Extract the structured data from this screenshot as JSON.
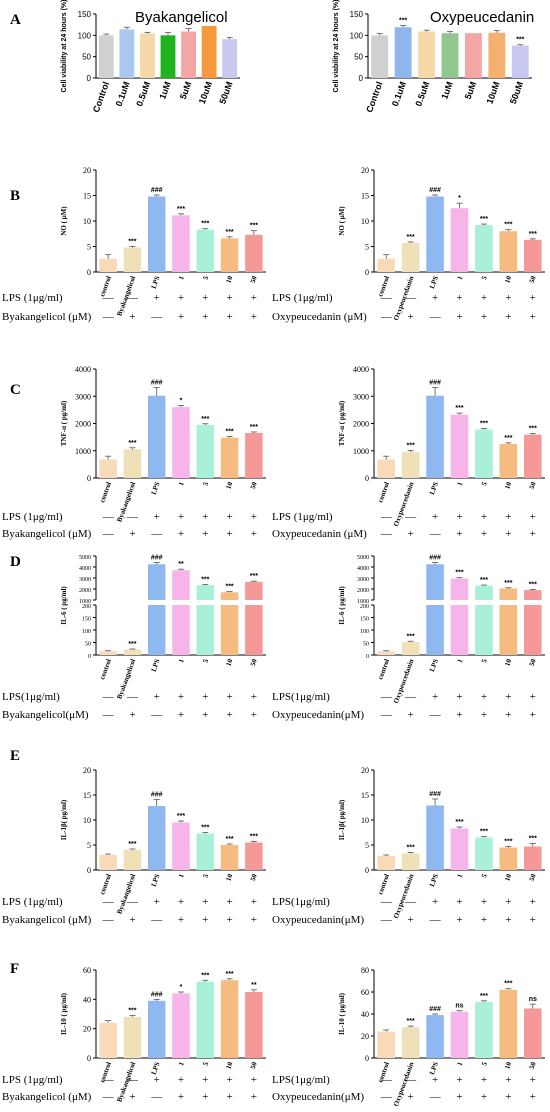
{
  "chart_data": [
    {
      "panel": "A",
      "type": "bar",
      "title": "Byakangelicol",
      "ylabel": "Cell viability at 24 hours (%)",
      "ylim": [
        0,
        150
      ],
      "yticks": [
        0,
        50,
        100,
        150
      ],
      "categories": [
        "Control",
        "0.1uM",
        "0.5uM",
        "1uM",
        "5uM",
        "10uM",
        "50uM"
      ],
      "values": [
        100,
        114,
        104,
        100,
        109,
        122,
        91
      ],
      "errors": [
        3,
        5,
        3,
        7,
        7,
        0,
        4
      ],
      "sig": [
        "",
        "",
        "",
        "",
        "",
        "",
        ""
      ],
      "colors": [
        "#d0d0d0",
        "#a8c8f0",
        "#f5d9a8",
        "#1fb31f",
        "#f4a5a5",
        "#f59a3c",
        "#c8c8f0"
      ]
    },
    {
      "panel": "",
      "type": "bar",
      "title": "Oxypeucedanin",
      "ylabel": "Cell viability at 24 hours (%)",
      "ylim": [
        0,
        150
      ],
      "yticks": [
        0,
        50,
        100,
        150
      ],
      "categories": [
        "Control",
        "0.1uM",
        "0.5uM",
        "1uM",
        "5uM",
        "10uM",
        "50uM"
      ],
      "values": [
        100,
        119,
        109,
        105,
        105,
        106,
        76
      ],
      "errors": [
        4,
        4,
        3,
        4,
        0,
        5,
        2
      ],
      "sig": [
        "",
        "***",
        "",
        "",
        "",
        "",
        "***"
      ],
      "colors": [
        "#d0d0d0",
        "#8fb4ee",
        "#f5d9a8",
        "#8fc78f",
        "#f4a5a5",
        "#f5b070",
        "#c8c8f0"
      ]
    },
    {
      "panel": "B",
      "type": "bar",
      "title": "",
      "ylabel": "NO ( μM)",
      "ylim": [
        0,
        20
      ],
      "yticks": [
        0,
        5,
        10,
        15,
        20
      ],
      "categories": [
        "control",
        "Byakangelicol",
        "LPS",
        "1",
        "5",
        "10",
        "50"
      ],
      "values": [
        2.6,
        4.8,
        14.8,
        11.1,
        8.3,
        6.6,
        7.3
      ],
      "errors": [
        0.8,
        0.2,
        0.3,
        0.3,
        0.2,
        0.3,
        0.8
      ],
      "sig": [
        "",
        "***",
        "###",
        "***",
        "***",
        "***",
        "***"
      ],
      "colors": [
        "#f8d9b8",
        "#f0e0b8",
        "#8fb8f0",
        "#f6b4e8",
        "#a8f0d8",
        "#f6bb80",
        "#f49898"
      ],
      "row_labels": [
        "LPS (1μg/ml)",
        "Byakangelicol (μM)"
      ],
      "rows": [
        [
          "—",
          "—",
          "+",
          "+",
          "+",
          "+",
          "+"
        ],
        [
          "—",
          "+",
          "—",
          "+",
          "+",
          "+",
          "+"
        ]
      ]
    },
    {
      "panel": "",
      "type": "bar",
      "title": "",
      "ylabel": "NO ( μM)",
      "ylim": [
        0,
        20
      ],
      "yticks": [
        0,
        5,
        10,
        15,
        20
      ],
      "categories": [
        "control",
        "Oxypeucedanin",
        "LPS",
        "1",
        "5",
        "10",
        "50"
      ],
      "values": [
        2.6,
        5.7,
        14.8,
        12.5,
        9.2,
        8.0,
        6.3
      ],
      "errors": [
        0.8,
        0.2,
        0.3,
        1.0,
        0.2,
        0.3,
        0.2
      ],
      "sig": [
        "",
        "***",
        "###",
        "*",
        "***",
        "***",
        "***"
      ],
      "colors": [
        "#f8d9b8",
        "#f0e0b8",
        "#8fb8f0",
        "#f6b4e8",
        "#a8f0d8",
        "#f6bb80",
        "#f49898"
      ],
      "row_labels": [
        "LPS (1μg/ml)",
        "Oxypeucedanin (μM)"
      ],
      "rows": [
        [
          "—",
          "—",
          "+",
          "+",
          "+",
          "+",
          "+"
        ],
        [
          "—",
          "+",
          "—",
          "+",
          "+",
          "+",
          "+"
        ]
      ]
    },
    {
      "panel": "C",
      "type": "bar",
      "title": "",
      "ylabel": "TNF-α ( pg/ml)",
      "ylim": [
        0,
        4000
      ],
      "yticks": [
        0,
        1000,
        2000,
        3000,
        4000
      ],
      "categories": [
        "control",
        "Byakangelicol",
        "LPS",
        "1",
        "5",
        "10",
        "50"
      ],
      "values": [
        680,
        1050,
        3020,
        2600,
        1950,
        1480,
        1650
      ],
      "errors": [
        120,
        60,
        300,
        60,
        40,
        40,
        40
      ],
      "sig": [
        "",
        "***",
        "###",
        "*",
        "***",
        "***",
        "***"
      ],
      "colors": [
        "#f8d9b8",
        "#f0e0b8",
        "#8fb8f0",
        "#f6b4e8",
        "#a8f0d8",
        "#f6bb80",
        "#f49898"
      ],
      "row_labels": [
        "LPS (1μg/ml)",
        "Byakangelicol (μM)"
      ],
      "rows": [
        [
          "—",
          "—",
          "+",
          "+",
          "+",
          "+",
          "+"
        ],
        [
          "—",
          "+",
          "—",
          "+",
          "+",
          "+",
          "+"
        ]
      ]
    },
    {
      "panel": "",
      "type": "bar",
      "title": "",
      "ylabel": "TNF-α ( pg/ml)",
      "ylim": [
        0,
        4000
      ],
      "yticks": [
        0,
        1000,
        2000,
        3000,
        4000
      ],
      "categories": [
        "control",
        "Oxypeucedanin",
        "LPS",
        "1",
        "5",
        "10",
        "50"
      ],
      "values": [
        680,
        950,
        3020,
        2320,
        1780,
        1250,
        1590
      ],
      "errors": [
        120,
        60,
        300,
        60,
        40,
        40,
        40
      ],
      "sig": [
        "",
        "***",
        "###",
        "***",
        "***",
        "***",
        "***"
      ],
      "colors": [
        "#f8d9b8",
        "#f0e0b8",
        "#8fb8f0",
        "#f6b4e8",
        "#a8f0d8",
        "#f6bb80",
        "#f49898"
      ],
      "row_labels": [
        "LPS (1μg/ml)",
        "Oxypeucedanin (μM)"
      ],
      "rows": [
        [
          "—",
          "—",
          "+",
          "+",
          "+",
          "+",
          "+"
        ],
        [
          "—",
          "+",
          "—",
          "+",
          "+",
          "+",
          "+"
        ]
      ]
    },
    {
      "panel": "D",
      "type": "bar",
      "title": "",
      "broken_axis": true,
      "ylabel": "IL-6 ( pg/ml)",
      "lower": {
        "ylim": [
          0,
          200
        ],
        "yticks": [
          0,
          50,
          100,
          150,
          200
        ]
      },
      "upper": {
        "ylim": [
          1000,
          5000
        ],
        "yticks": [
          1000,
          2000,
          3000,
          4000,
          5000
        ]
      },
      "categories": [
        "control",
        "Byakangelicol",
        "LPS",
        "1",
        "5",
        "10",
        "50"
      ],
      "values": [
        15,
        22,
        4250,
        3700,
        2350,
        1700,
        2650
      ],
      "errors": [
        2,
        2,
        150,
        100,
        60,
        60,
        60
      ],
      "sig": [
        "",
        "***",
        "###",
        "**",
        "***",
        "***",
        "***"
      ],
      "colors": [
        "#f8d9b8",
        "#f0e0b8",
        "#8fb8f0",
        "#f6b4e8",
        "#a8f0d8",
        "#f6bb80",
        "#f49898"
      ],
      "row_labels": [
        "LPS(1μg/ml)",
        "Byakangelicol(μM)"
      ],
      "rows": [
        [
          "—",
          "—",
          "+",
          "+",
          "+",
          "+",
          "+"
        ],
        [
          "—",
          "+",
          "—",
          "+",
          "+",
          "+",
          "+"
        ]
      ]
    },
    {
      "panel": "",
      "type": "bar",
      "title": "",
      "broken_axis": true,
      "ylabel": "IL-6 ( pg/ml)",
      "lower": {
        "ylim": [
          0,
          200
        ],
        "yticks": [
          0,
          50,
          100,
          150,
          200
        ]
      },
      "upper": {
        "ylim": [
          1000,
          5000
        ],
        "yticks": [
          1000,
          2000,
          3000,
          4000,
          5000
        ]
      },
      "categories": [
        "control",
        "Oxypeucedanin",
        "LPS",
        "1",
        "5",
        "10",
        "50"
      ],
      "values": [
        15,
        52,
        4250,
        2950,
        2300,
        2050,
        1900
      ],
      "errors": [
        2,
        3,
        150,
        80,
        60,
        60,
        60
      ],
      "sig": [
        "",
        "***",
        "###",
        "***",
        "***",
        "***",
        "***"
      ],
      "colors": [
        "#f8d9b8",
        "#f0e0b8",
        "#8fb8f0",
        "#f6b4e8",
        "#a8f0d8",
        "#f6bb80",
        "#f49898"
      ],
      "row_labels": [
        "LPS(1μg/ml)",
        "Oxypeucedanin(μM)"
      ],
      "rows": [
        [
          "—",
          "—",
          "+",
          "+",
          "+",
          "+",
          "+"
        ],
        [
          "—",
          "+",
          "—",
          "+",
          "+",
          "+",
          "+"
        ]
      ]
    },
    {
      "panel": "E",
      "type": "bar",
      "title": "",
      "ylabel": "IL-1β( pg/ml)",
      "ylim": [
        0,
        20
      ],
      "yticks": [
        0,
        5,
        10,
        15,
        20
      ],
      "categories": [
        "control",
        "Byakangelicol",
        "LPS",
        "1",
        "5",
        "10",
        "50"
      ],
      "values": [
        3.0,
        4.0,
        12.8,
        9.5,
        7.3,
        5.0,
        5.5
      ],
      "errors": [
        0.2,
        0.2,
        1.3,
        0.3,
        0.2,
        0.2,
        0.2
      ],
      "sig": [
        "",
        "***",
        "###",
        "***",
        "***",
        "***",
        "***"
      ],
      "colors": [
        "#f8d9b8",
        "#f0e0b8",
        "#8fb8f0",
        "#f6b4e8",
        "#a8f0d8",
        "#f6bb80",
        "#f49898"
      ],
      "row_labels": [
        "LPS (1μg/ml)",
        "Byakangelicol (μM)"
      ],
      "rows": [
        [
          "—",
          "—",
          "+",
          "+",
          "+",
          "+",
          "+"
        ],
        [
          "—",
          "+",
          "—",
          "+",
          "+",
          "+",
          "+"
        ]
      ]
    },
    {
      "panel": "",
      "type": "bar",
      "title": "",
      "ylabel": "IL-1β( pg/ml)",
      "ylim": [
        0,
        20
      ],
      "yticks": [
        0,
        5,
        10,
        15,
        20
      ],
      "categories": [
        "control",
        "Oxypeucedanin",
        "LPS",
        "1",
        "5",
        "10",
        "50"
      ],
      "values": [
        2.8,
        3.3,
        12.9,
        8.3,
        6.5,
        4.5,
        4.7
      ],
      "errors": [
        0.2,
        0.2,
        1.3,
        0.3,
        0.2,
        0.2,
        0.6
      ],
      "sig": [
        "",
        "***",
        "###",
        "***",
        "***",
        "***",
        "***"
      ],
      "colors": [
        "#f8d9b8",
        "#f0e0b8",
        "#8fb8f0",
        "#f6b4e8",
        "#a8f0d8",
        "#f6bb80",
        "#f49898"
      ],
      "row_labels": [
        "LPS(1μg/ml)",
        "Oxypeucedanin(μM)"
      ],
      "rows": [
        [
          "—",
          "—",
          "+",
          "+",
          "+",
          "+",
          "+"
        ],
        [
          "—",
          "+",
          "—",
          "+",
          "+",
          "+",
          "+"
        ]
      ]
    },
    {
      "panel": "F",
      "type": "bar",
      "title": "",
      "ylabel": "IL-10 ( pg/ml)",
      "ylim": [
        0,
        60
      ],
      "yticks": [
        0,
        20,
        40,
        60
      ],
      "categories": [
        "control",
        "Byakangelicol",
        "LPS",
        "1",
        "5",
        "10",
        "50"
      ],
      "values": [
        24,
        28,
        39,
        44,
        52,
        53,
        45
      ],
      "errors": [
        1.5,
        1.0,
        1.0,
        1.0,
        1.0,
        1.0,
        1.5
      ],
      "sig": [
        "",
        "***",
        "###",
        "*",
        "***",
        "***",
        "**"
      ],
      "colors": [
        "#f8d9b8",
        "#f0e0b8",
        "#8fb8f0",
        "#f6b4e8",
        "#a8f0d8",
        "#f6bb80",
        "#f49898"
      ],
      "row_labels": [
        "LPS (1μg/ml)",
        "Byakangelicol (μM)"
      ],
      "rows": [
        [
          "—",
          "—",
          "+",
          "+",
          "+",
          "+",
          "+"
        ],
        [
          "—",
          "+",
          "—",
          "+",
          "+",
          "+",
          "+"
        ]
      ]
    },
    {
      "panel": "",
      "type": "bar",
      "title": "",
      "ylabel": "IL-10 ( pg/ml)",
      "ylim": [
        0,
        80
      ],
      "yticks": [
        0,
        20,
        40,
        60,
        80
      ],
      "categories": [
        "control",
        "Oxypeucedanin",
        "LPS",
        "1",
        "5",
        "10",
        "50"
      ],
      "values": [
        24,
        28,
        39,
        42,
        51,
        62,
        45
      ],
      "errors": [
        1.5,
        1.0,
        1.0,
        1.0,
        1.0,
        1.0,
        4.0
      ],
      "sig": [
        "",
        "***",
        "###",
        "ns",
        "***",
        "***",
        "ns"
      ],
      "colors": [
        "#f8d9b8",
        "#f0e0b8",
        "#8fb8f0",
        "#f6b4e8",
        "#a8f0d8",
        "#f6bb80",
        "#f49898"
      ],
      "row_labels": [
        "LPS(1μg/ml)",
        "Oxypeucedanin(μM)"
      ],
      "rows": [
        [
          "—",
          "—",
          "+",
          "+",
          "+",
          "+",
          "+"
        ],
        [
          "—",
          "+",
          "—",
          "+",
          "+",
          "+",
          "+"
        ]
      ]
    }
  ]
}
